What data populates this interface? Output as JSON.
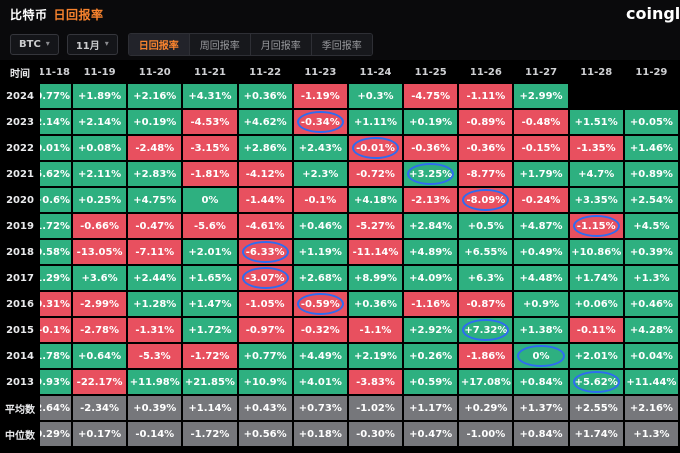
{
  "header": {
    "title_coin": "比特币",
    "title_metric": "日回报率",
    "brand": "coinglass"
  },
  "toolbar": {
    "coin": "BTC",
    "month": "11月",
    "tabs": [
      {
        "label": "日回报率",
        "active": true
      },
      {
        "label": "周回报率",
        "active": false
      },
      {
        "label": "月回报率",
        "active": false
      },
      {
        "label": "季回报率",
        "active": false
      }
    ]
  },
  "table": {
    "time_header": "时间",
    "dates": [
      "11-18",
      "11-19",
      "11-20",
      "11-21",
      "11-22",
      "11-23",
      "11-24",
      "11-25",
      "11-26",
      "11-27",
      "11-28",
      "11-29"
    ],
    "rows": [
      {
        "label": "2024",
        "type": "year",
        "circled": [],
        "values": [
          "+0.77%",
          "+1.89%",
          "+2.16%",
          "+4.31%",
          "+0.36%",
          "-1.19%",
          "+0.3%",
          "-4.75%",
          "-1.11%",
          "+2.99%",
          "",
          ""
        ]
      },
      {
        "label": "2023",
        "type": "year",
        "circled": [
          5
        ],
        "values": [
          "+2.14%",
          "+2.14%",
          "+0.19%",
          "-4.53%",
          "+4.62%",
          "-0.34%",
          "+1.11%",
          "+0.19%",
          "-0.89%",
          "-0.48%",
          "+1.51%",
          "+0.05%"
        ]
      },
      {
        "label": "2022",
        "type": "year",
        "circled": [
          6
        ],
        "values": [
          "+0.01%",
          "+0.08%",
          "-2.48%",
          "-3.15%",
          "+2.86%",
          "+2.43%",
          "-0.01%",
          "-0.36%",
          "-0.36%",
          "-0.15%",
          "-1.35%",
          "+1.46%"
        ]
      },
      {
        "label": "2021",
        "type": "year",
        "circled": [
          7
        ],
        "values": [
          "+5.62%",
          "+2.11%",
          "+2.83%",
          "-1.81%",
          "-4.12%",
          "+2.3%",
          "-0.72%",
          "+3.25%",
          "-8.77%",
          "+1.79%",
          "+4.7%",
          "+0.89%"
        ]
      },
      {
        "label": "2020",
        "type": "year",
        "circled": [
          8
        ],
        "values": [
          "+0.6%",
          "+0.25%",
          "+4.75%",
          "0%",
          "-1.44%",
          "-0.1%",
          "+4.18%",
          "-2.13%",
          "-8.09%",
          "-0.24%",
          "+3.35%",
          "+2.54%"
        ]
      },
      {
        "label": "2019",
        "type": "year",
        "circled": [
          10
        ],
        "values": [
          "+1.72%",
          "-0.66%",
          "-0.47%",
          "-5.6%",
          "-4.61%",
          "+0.46%",
          "-5.27%",
          "+2.84%",
          "+0.5%",
          "+4.87%",
          "-1.15%",
          "+4.5%"
        ]
      },
      {
        "label": "2018",
        "type": "year",
        "circled": [
          4
        ],
        "values": [
          "+0.58%",
          "-13.05%",
          "-7.11%",
          "+2.01%",
          "-6.33%",
          "+1.19%",
          "-11.14%",
          "+4.89%",
          "+6.55%",
          "+0.49%",
          "+10.86%",
          "+0.39%"
        ]
      },
      {
        "label": "2017",
        "type": "year",
        "circled": [
          4
        ],
        "values": [
          "+1.29%",
          "+3.6%",
          "+2.44%",
          "+1.65%",
          "-3.07%",
          "+2.68%",
          "+8.99%",
          "+4.09%",
          "+6.3%",
          "+4.48%",
          "+1.74%",
          "+1.3%"
        ]
      },
      {
        "label": "2016",
        "type": "year",
        "circled": [
          5
        ],
        "values": [
          "-0.31%",
          "-2.99%",
          "+1.28%",
          "+1.47%",
          "-1.05%",
          "-0.59%",
          "+0.36%",
          "-1.16%",
          "-0.87%",
          "+0.9%",
          "+0.06%",
          "+0.46%"
        ]
      },
      {
        "label": "2015",
        "type": "year",
        "circled": [
          8
        ],
        "values": [
          "-0.1%",
          "-2.78%",
          "-1.31%",
          "+1.72%",
          "-0.97%",
          "-0.32%",
          "-1.1%",
          "+2.92%",
          "+7.32%",
          "+1.38%",
          "-0.11%",
          "+4.28%"
        ]
      },
      {
        "label": "2014",
        "type": "year",
        "circled": [
          9
        ],
        "values": [
          "+1.78%",
          "+0.64%",
          "-5.3%",
          "-1.72%",
          "+0.77%",
          "+4.49%",
          "+2.19%",
          "+0.26%",
          "-1.86%",
          "0%",
          "+2.01%",
          "+0.04%"
        ]
      },
      {
        "label": "2013",
        "type": "year",
        "circled": [
          10
        ],
        "values": [
          "+9.93%",
          "-22.17%",
          "+11.98%",
          "+21.85%",
          "+10.9%",
          "+4.01%",
          "-3.83%",
          "+0.59%",
          "+17.08%",
          "+0.84%",
          "+5.62%",
          "+11.44%"
        ]
      },
      {
        "label": "平均数",
        "type": "stat",
        "circled": [],
        "values": [
          "+2.64%",
          "-2.34%",
          "+0.39%",
          "+1.14%",
          "+0.43%",
          "+0.73%",
          "-1.02%",
          "+1.17%",
          "+0.29%",
          "+1.37%",
          "+2.55%",
          "+2.16%"
        ]
      },
      {
        "label": "中位数",
        "type": "stat",
        "circled": [],
        "values": [
          "+0.29%",
          "+0.17%",
          "-0.14%",
          "-1.72%",
          "+0.56%",
          "+0.18%",
          "-0.30%",
          "+0.47%",
          "-1.00%",
          "+0.84%",
          "+1.74%",
          "+1.3%"
        ]
      }
    ]
  },
  "colors": {
    "positive": "#2eb080",
    "negative": "#e8505f",
    "stat": "#76777b",
    "circle": "#2e6cf0",
    "accent": "#f8832e"
  }
}
